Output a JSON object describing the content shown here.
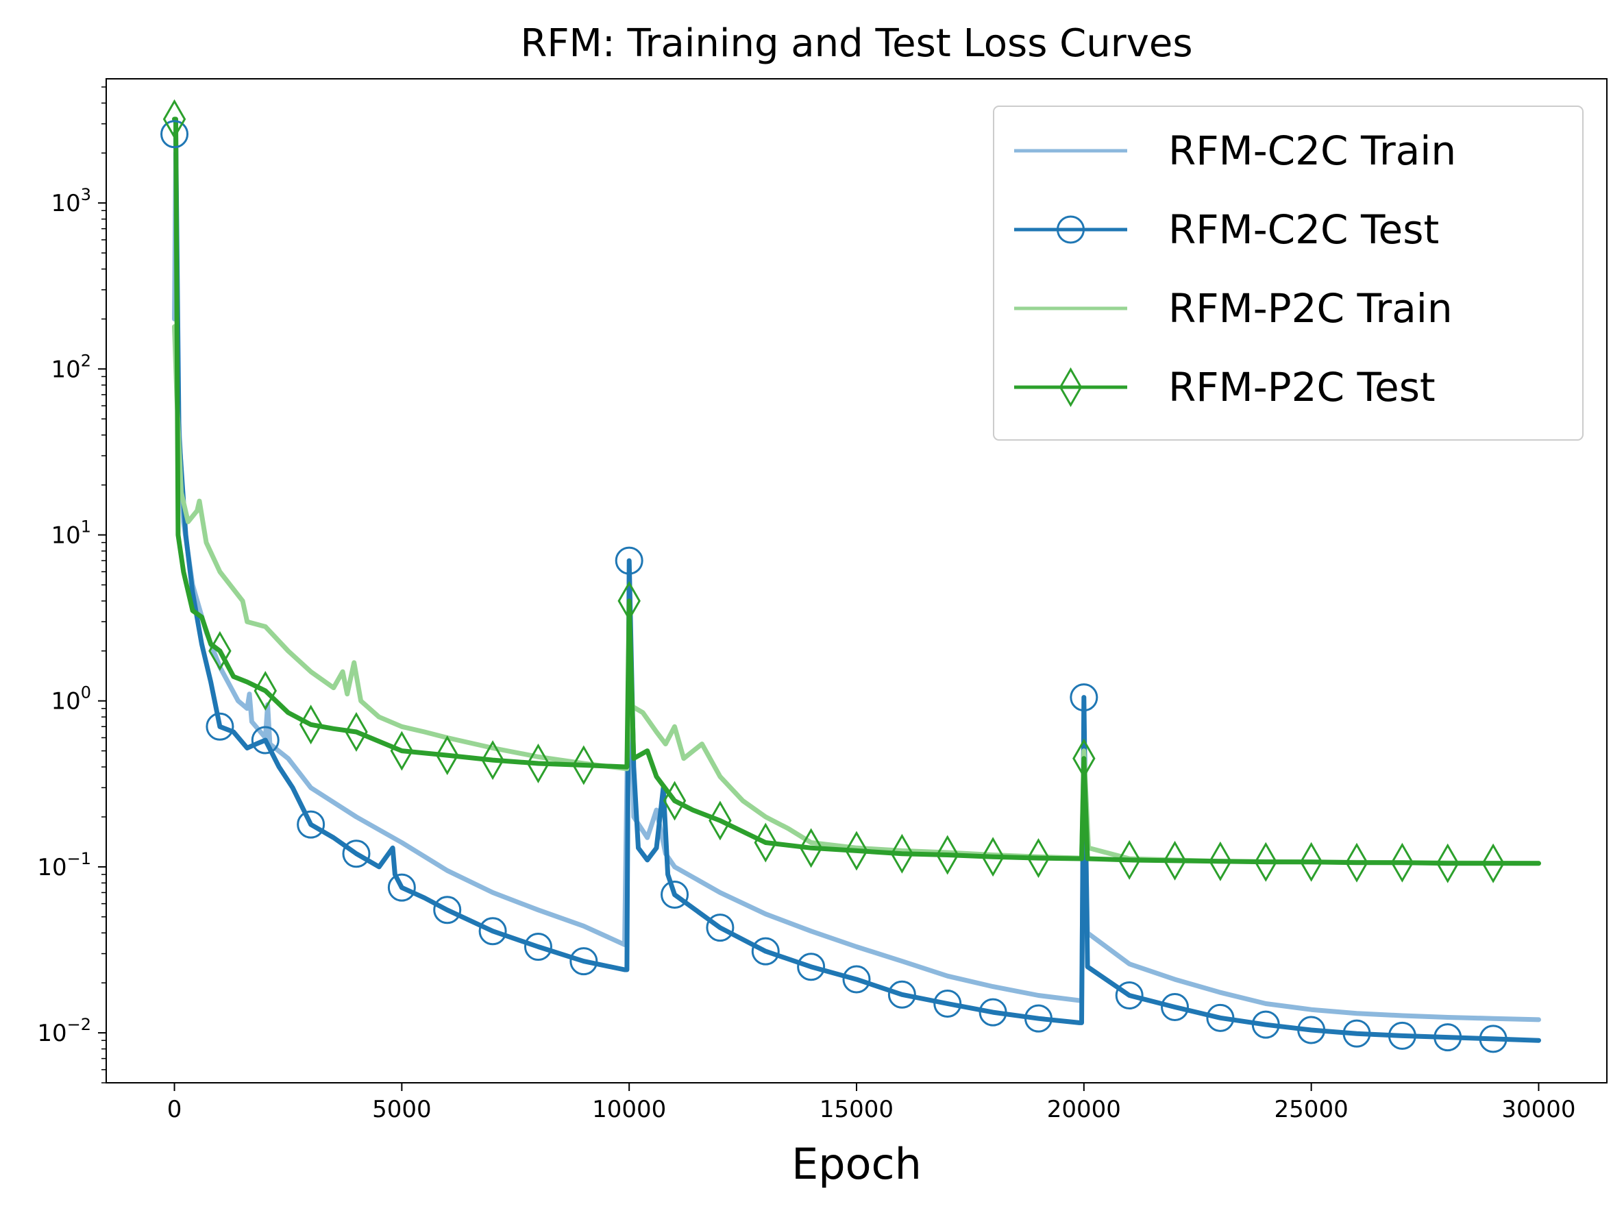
{
  "chart_data": {
    "type": "line",
    "title": "RFM: Training and Test Loss Curves",
    "xlabel": "Epoch",
    "ylabel": "",
    "yscale": "log",
    "xlim": [
      -1500,
      31500
    ],
    "ylim": [
      0.005,
      5600
    ],
    "x_ticks": [
      0,
      5000,
      10000,
      15000,
      20000,
      25000,
      30000
    ],
    "x_tick_labels": [
      "0",
      "5000",
      "10000",
      "15000",
      "20000",
      "25000",
      "30000"
    ],
    "y_ticks": [
      0.01,
      0.1,
      1,
      10,
      100,
      1000
    ],
    "y_tick_labels": [
      {
        "base": "10",
        "exp": "−2"
      },
      {
        "base": "10",
        "exp": "−1"
      },
      {
        "base": "10",
        "exp": "0"
      },
      {
        "base": "10",
        "exp": "1"
      },
      {
        "base": "10",
        "exp": "2"
      },
      {
        "base": "10",
        "exp": "3"
      }
    ],
    "legend_position": "upper right",
    "series": [
      {
        "name": "RFM-C2C Train",
        "color": "#8cb8dd",
        "marker": "none",
        "points": [
          [
            0,
            200
          ],
          [
            30,
            2000
          ],
          [
            80,
            60
          ],
          [
            200,
            12
          ],
          [
            400,
            5
          ],
          [
            700,
            2.6
          ],
          [
            1000,
            1.6
          ],
          [
            1400,
            1.0
          ],
          [
            1600,
            0.9
          ],
          [
            1650,
            1.1
          ],
          [
            1700,
            0.75
          ],
          [
            2000,
            0.6
          ],
          [
            2050,
            0.95
          ],
          [
            2100,
            0.55
          ],
          [
            2500,
            0.45
          ],
          [
            3000,
            0.3
          ],
          [
            4000,
            0.2
          ],
          [
            5000,
            0.14
          ],
          [
            6000,
            0.095
          ],
          [
            7000,
            0.07
          ],
          [
            8000,
            0.055
          ],
          [
            9000,
            0.044
          ],
          [
            9900,
            0.034
          ],
          [
            10000,
            3.0
          ],
          [
            10100,
            0.2
          ],
          [
            10400,
            0.15
          ],
          [
            10600,
            0.22
          ],
          [
            10800,
            0.12
          ],
          [
            11000,
            0.1
          ],
          [
            12000,
            0.07
          ],
          [
            13000,
            0.052
          ],
          [
            14000,
            0.041
          ],
          [
            15000,
            0.033
          ],
          [
            16000,
            0.027
          ],
          [
            17000,
            0.022
          ],
          [
            18000,
            0.019
          ],
          [
            19000,
            0.0168
          ],
          [
            19950,
            0.0156
          ],
          [
            20000,
            0.5
          ],
          [
            20080,
            0.04
          ],
          [
            21000,
            0.026
          ],
          [
            22000,
            0.021
          ],
          [
            23000,
            0.0175
          ],
          [
            24000,
            0.015
          ],
          [
            25000,
            0.0138
          ],
          [
            26000,
            0.0131
          ],
          [
            27000,
            0.0127
          ],
          [
            28000,
            0.0124
          ],
          [
            29000,
            0.0122
          ],
          [
            30000,
            0.012
          ]
        ]
      },
      {
        "name": "RFM-C2C Test",
        "color": "#1f77b4",
        "marker": "circle",
        "markers_x": [
          0,
          1000,
          2000,
          3000,
          4000,
          5000,
          6000,
          7000,
          8000,
          9000,
          10000,
          11000,
          12000,
          13000,
          14000,
          15000,
          16000,
          17000,
          18000,
          19000,
          20000,
          21000,
          22000,
          23000,
          24000,
          25000,
          26000,
          27000,
          28000,
          29000
        ],
        "points": [
          [
            0,
            2600
          ],
          [
            30,
            2600
          ],
          [
            100,
            40
          ],
          [
            250,
            10
          ],
          [
            400,
            4.5
          ],
          [
            600,
            2.2
          ],
          [
            800,
            1.3
          ],
          [
            1000,
            0.7
          ],
          [
            1300,
            0.65
          ],
          [
            1600,
            0.52
          ],
          [
            1800,
            0.55
          ],
          [
            2000,
            0.58
          ],
          [
            2300,
            0.4
          ],
          [
            2600,
            0.3
          ],
          [
            3000,
            0.18
          ],
          [
            3500,
            0.15
          ],
          [
            4000,
            0.12
          ],
          [
            4500,
            0.1
          ],
          [
            4800,
            0.13
          ],
          [
            4850,
            0.09
          ],
          [
            5000,
            0.075
          ],
          [
            5500,
            0.065
          ],
          [
            6000,
            0.055
          ],
          [
            7000,
            0.041
          ],
          [
            8000,
            0.033
          ],
          [
            9000,
            0.027
          ],
          [
            9900,
            0.024
          ],
          [
            9950,
            0.024
          ],
          [
            10000,
            7
          ],
          [
            10100,
            0.4
          ],
          [
            10200,
            0.13
          ],
          [
            10400,
            0.11
          ],
          [
            10600,
            0.13
          ],
          [
            10750,
            0.3
          ],
          [
            10850,
            0.09
          ],
          [
            11000,
            0.068
          ],
          [
            12000,
            0.043
          ],
          [
            13000,
            0.031
          ],
          [
            14000,
            0.025
          ],
          [
            15000,
            0.021
          ],
          [
            16000,
            0.017
          ],
          [
            17000,
            0.015
          ],
          [
            18000,
            0.0133
          ],
          [
            19000,
            0.0122
          ],
          [
            19900,
            0.0115
          ],
          [
            19950,
            0.0115
          ],
          [
            20000,
            1.05
          ],
          [
            20080,
            0.025
          ],
          [
            21000,
            0.0168
          ],
          [
            22000,
            0.0143
          ],
          [
            23000,
            0.0123
          ],
          [
            24000,
            0.0112
          ],
          [
            25000,
            0.0104
          ],
          [
            26000,
            0.0099
          ],
          [
            27000,
            0.0096
          ],
          [
            28000,
            0.0094
          ],
          [
            29000,
            0.0092
          ],
          [
            30000,
            0.009
          ]
        ]
      },
      {
        "name": "RFM-P2C Train",
        "color": "#98d594",
        "marker": "none",
        "points": [
          [
            0,
            180
          ],
          [
            50,
            70
          ],
          [
            150,
            18
          ],
          [
            300,
            12
          ],
          [
            500,
            14
          ],
          [
            550,
            16
          ],
          [
            700,
            9
          ],
          [
            1000,
            6
          ],
          [
            1500,
            4
          ],
          [
            1600,
            3
          ],
          [
            2000,
            2.8
          ],
          [
            2500,
            2.0
          ],
          [
            3000,
            1.5
          ],
          [
            3500,
            1.2
          ],
          [
            3700,
            1.5
          ],
          [
            3800,
            1.1
          ],
          [
            3950,
            1.7
          ],
          [
            4100,
            1.0
          ],
          [
            4500,
            0.8
          ],
          [
            5000,
            0.7
          ],
          [
            5500,
            0.65
          ],
          [
            6000,
            0.6
          ],
          [
            7000,
            0.52
          ],
          [
            8000,
            0.46
          ],
          [
            9000,
            0.42
          ],
          [
            9950,
            0.39
          ],
          [
            10000,
            0.95
          ],
          [
            10300,
            0.85
          ],
          [
            10600,
            0.65
          ],
          [
            10800,
            0.55
          ],
          [
            11000,
            0.7
          ],
          [
            11200,
            0.45
          ],
          [
            11600,
            0.55
          ],
          [
            12000,
            0.35
          ],
          [
            12500,
            0.25
          ],
          [
            13000,
            0.2
          ],
          [
            13500,
            0.17
          ],
          [
            14000,
            0.14
          ],
          [
            15000,
            0.13
          ],
          [
            16000,
            0.125
          ],
          [
            17000,
            0.122
          ],
          [
            18000,
            0.118
          ],
          [
            19000,
            0.115
          ],
          [
            19950,
            0.113
          ],
          [
            20000,
            0.5
          ],
          [
            20100,
            0.13
          ],
          [
            21000,
            0.112
          ],
          [
            22000,
            0.11
          ],
          [
            23000,
            0.108
          ],
          [
            25000,
            0.107
          ],
          [
            27000,
            0.106
          ],
          [
            30000,
            0.105
          ]
        ]
      },
      {
        "name": "RFM-P2C Test",
        "color": "#2ca02c",
        "marker": "diamond",
        "markers_x": [
          0,
          1000,
          2000,
          3000,
          4000,
          5000,
          6000,
          7000,
          8000,
          9000,
          10000,
          11000,
          12000,
          13000,
          14000,
          15000,
          16000,
          17000,
          18000,
          19000,
          20000,
          21000,
          22000,
          23000,
          24000,
          25000,
          26000,
          27000,
          28000,
          29000
        ],
        "points": [
          [
            0,
            3200
          ],
          [
            30,
            3200
          ],
          [
            80,
            10
          ],
          [
            200,
            6
          ],
          [
            400,
            3.5
          ],
          [
            600,
            3.2
          ],
          [
            800,
            2.2
          ],
          [
            1000,
            2.0
          ],
          [
            1300,
            1.4
          ],
          [
            1600,
            1.3
          ],
          [
            2000,
            1.15
          ],
          [
            2500,
            0.85
          ],
          [
            3000,
            0.72
          ],
          [
            3500,
            0.68
          ],
          [
            4000,
            0.65
          ],
          [
            5000,
            0.5
          ],
          [
            6000,
            0.47
          ],
          [
            7000,
            0.44
          ],
          [
            8000,
            0.42
          ],
          [
            9000,
            0.41
          ],
          [
            9950,
            0.4
          ],
          [
            10000,
            4
          ],
          [
            10100,
            0.45
          ],
          [
            10400,
            0.5
          ],
          [
            10600,
            0.35
          ],
          [
            11000,
            0.25
          ],
          [
            11400,
            0.22
          ],
          [
            12000,
            0.19
          ],
          [
            13000,
            0.14
          ],
          [
            14000,
            0.13
          ],
          [
            15000,
            0.125
          ],
          [
            16000,
            0.12
          ],
          [
            17000,
            0.118
          ],
          [
            18000,
            0.115
          ],
          [
            19000,
            0.113
          ],
          [
            19950,
            0.112
          ],
          [
            20000,
            0.45
          ],
          [
            20080,
            0.112
          ],
          [
            21000,
            0.11
          ],
          [
            22000,
            0.109
          ],
          [
            23000,
            0.108
          ],
          [
            24000,
            0.107
          ],
          [
            25000,
            0.107
          ],
          [
            26000,
            0.106
          ],
          [
            27000,
            0.106
          ],
          [
            28000,
            0.105
          ],
          [
            29000,
            0.105
          ],
          [
            30000,
            0.105
          ]
        ]
      }
    ]
  }
}
